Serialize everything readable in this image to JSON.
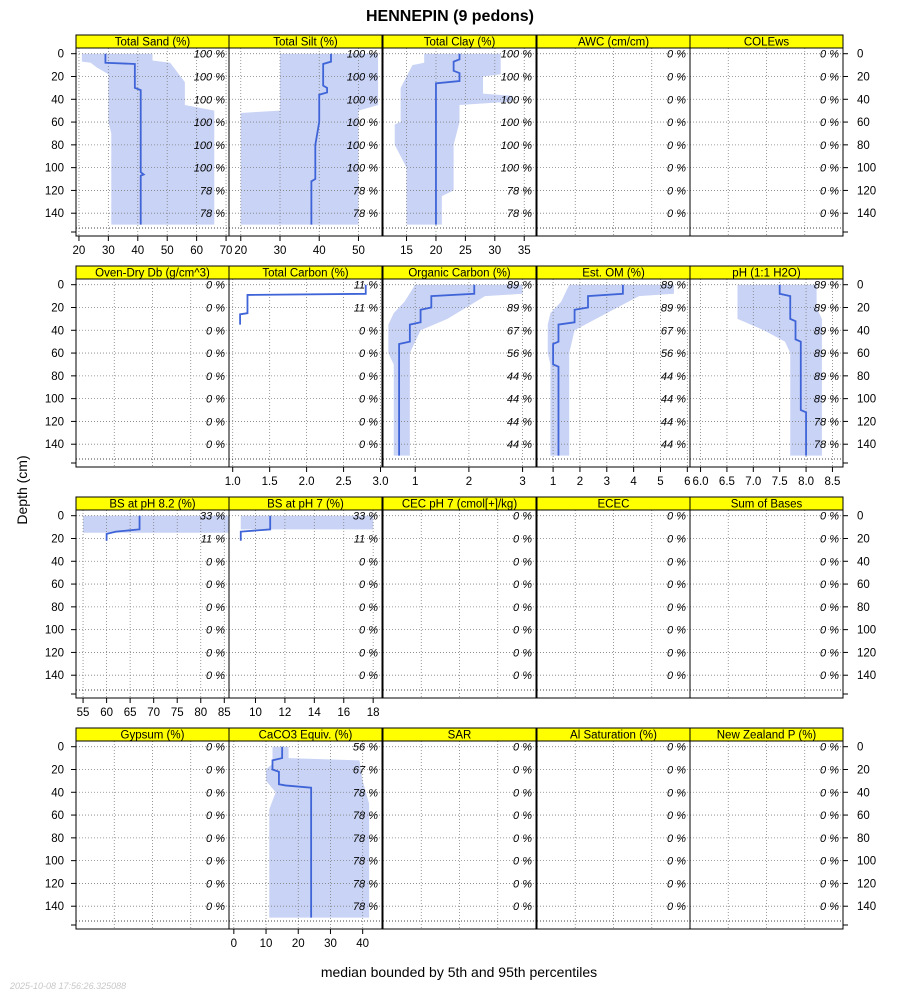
{
  "chart_data": {
    "type": "line",
    "title": "HENNEPIN (9 pedons)",
    "xlabel": "median bounded by 5th and 95th percentiles",
    "ylabel": "Depth (cm)",
    "footer": "2025-10-08 17:56:26.325088",
    "ylim": [
      160,
      -5
    ],
    "yticks": [
      0,
      20,
      40,
      60,
      80,
      100,
      120,
      140
    ],
    "grid": true,
    "colors": {
      "strip": "#ffff00",
      "median": "#3f64d8",
      "band": "#c9d3f5",
      "grid": "#808080"
    },
    "panels": [
      {
        "label": "Total Sand (%)",
        "xlim": [
          19,
          71
        ],
        "xticks": [
          20,
          30,
          40,
          50,
          60,
          70
        ],
        "pct_labels": [
          "100 %",
          "100 %",
          "100 %",
          "100 %",
          "100 %",
          "100 %",
          "78 %",
          "78 %"
        ],
        "median": [
          [
            29,
            0
          ],
          [
            29,
            8
          ],
          [
            39,
            9
          ],
          [
            39,
            30
          ],
          [
            41,
            32
          ],
          [
            41,
            104
          ],
          [
            42,
            106
          ],
          [
            41,
            107
          ],
          [
            41,
            150
          ]
        ],
        "lower": [
          [
            21,
            0
          ],
          [
            21,
            7
          ],
          [
            24,
            8
          ],
          [
            26,
            12
          ],
          [
            28,
            15
          ],
          [
            30,
            18
          ],
          [
            30,
            60
          ],
          [
            31,
            70
          ],
          [
            31,
            150
          ]
        ],
        "upper": [
          [
            45,
            0
          ],
          [
            45,
            6
          ],
          [
            51,
            8
          ],
          [
            56,
            25
          ],
          [
            56,
            45
          ],
          [
            66,
            50
          ],
          [
            66,
            150
          ]
        ]
      },
      {
        "label": "Total Silt (%)",
        "xlim": [
          17,
          56
        ],
        "xticks": [
          20,
          30,
          40,
          50
        ],
        "pct_labels": [
          "100 %",
          "100 %",
          "100 %",
          "100 %",
          "100 %",
          "100 %",
          "78 %",
          "78 %"
        ],
        "median": [
          [
            43,
            0
          ],
          [
            43,
            7
          ],
          [
            41,
            9
          ],
          [
            41,
            28
          ],
          [
            42,
            30
          ],
          [
            42,
            34
          ],
          [
            40,
            36
          ],
          [
            40,
            60
          ],
          [
            39,
            80
          ],
          [
            39,
            110
          ],
          [
            38,
            112
          ],
          [
            38,
            150
          ]
        ],
        "lower": [
          [
            30,
            0
          ],
          [
            30,
            50
          ],
          [
            20,
            52
          ],
          [
            20,
            150
          ]
        ],
        "upper": [
          [
            55,
            0
          ],
          [
            55,
            45
          ],
          [
            50,
            50
          ],
          [
            50,
            150
          ]
        ]
      },
      {
        "label": "Total Clay (%)",
        "xlim": [
          11,
          37
        ],
        "xticks": [
          15,
          20,
          25,
          30,
          35
        ],
        "pct_labels": [
          "100 %",
          "100 %",
          "100 %",
          "100 %",
          "100 %",
          "100 %",
          "78 %",
          "78 %"
        ],
        "median": [
          [
            24,
            0
          ],
          [
            24,
            5
          ],
          [
            23,
            7
          ],
          [
            23,
            15
          ],
          [
            24,
            17
          ],
          [
            24,
            24
          ],
          [
            20,
            26
          ],
          [
            20,
            150
          ]
        ],
        "lower": [
          [
            18,
            0
          ],
          [
            18,
            8
          ],
          [
            16,
            10
          ],
          [
            15,
            20
          ],
          [
            14,
            30
          ],
          [
            14,
            60
          ],
          [
            13,
            62
          ],
          [
            13,
            80
          ],
          [
            14,
            90
          ],
          [
            15,
            100
          ],
          [
            15,
            150
          ]
        ],
        "upper": [
          [
            31,
            0
          ],
          [
            31,
            18
          ],
          [
            28,
            20
          ],
          [
            28,
            35
          ],
          [
            33,
            37
          ],
          [
            33,
            42
          ],
          [
            24,
            45
          ],
          [
            24,
            60
          ],
          [
            23,
            80
          ],
          [
            23,
            120
          ],
          [
            21,
            125
          ],
          [
            21,
            150
          ]
        ]
      },
      {
        "label": "AWC (cm/cm)",
        "xlim": null,
        "xticks": [],
        "pct_labels": [
          "0 %",
          "0 %",
          "0 %",
          "0 %",
          "0 %",
          "0 %",
          "0 %",
          "0 %"
        ],
        "median": [],
        "lower": [],
        "upper": []
      },
      {
        "label": "COLEws",
        "xlim": null,
        "xticks": [],
        "pct_labels": [
          "0 %",
          "0 %",
          "0 %",
          "0 %",
          "0 %",
          "0 %",
          "0 %",
          "0 %"
        ],
        "median": [],
        "lower": [],
        "upper": []
      },
      {
        "label": "Oven-Dry Db (g/cm^3)",
        "xlim": null,
        "xticks": [],
        "pct_labels": [
          "0 %",
          "0 %",
          "0 %",
          "0 %",
          "0 %",
          "0 %",
          "0 %",
          "0 %"
        ],
        "median": [],
        "lower": [],
        "upper": []
      },
      {
        "label": "Total Carbon (%)",
        "xlim": [
          0.95,
          3.02
        ],
        "xticks": [
          1.0,
          1.5,
          2.0,
          2.5,
          3.0
        ],
        "pct_labels": [
          "11 %",
          "11 %",
          "0 %",
          "0 %",
          "0 %",
          "0 %",
          "0 %",
          "0 %"
        ],
        "median": [
          [
            2.8,
            0
          ],
          [
            2.8,
            8
          ],
          [
            1.2,
            9
          ],
          [
            1.2,
            25
          ],
          [
            1.1,
            26
          ],
          [
            1.1,
            35
          ]
        ],
        "lower": [],
        "upper": []
      },
      {
        "label": "Organic Carbon (%)",
        "xlim": [
          0.4,
          3.25
        ],
        "xticks": [
          1,
          2,
          3
        ],
        "pct_labels": [
          "89 %",
          "89 %",
          "67 %",
          "56 %",
          "44 %",
          "44 %",
          "44 %",
          "44 %"
        ],
        "median": [
          [
            2.1,
            0
          ],
          [
            2.1,
            8
          ],
          [
            1.3,
            10
          ],
          [
            1.3,
            20
          ],
          [
            1.1,
            22
          ],
          [
            1.1,
            33
          ],
          [
            0.9,
            35
          ],
          [
            0.9,
            50
          ],
          [
            0.7,
            52
          ],
          [
            0.7,
            150
          ]
        ],
        "lower": [
          [
            1.0,
            0
          ],
          [
            0.8,
            15
          ],
          [
            0.6,
            25
          ],
          [
            0.5,
            35
          ],
          [
            0.5,
            60
          ],
          [
            0.6,
            70
          ],
          [
            0.6,
            150
          ]
        ],
        "upper": [
          [
            3.0,
            0
          ],
          [
            3.0,
            8
          ],
          [
            2.3,
            10
          ],
          [
            1.6,
            30
          ],
          [
            1.1,
            40
          ],
          [
            0.9,
            60
          ],
          [
            0.9,
            150
          ]
        ]
      },
      {
        "label": "Est. OM (%)",
        "xlim": [
          0.4,
          6.1
        ],
        "xticks": [
          1,
          2,
          3,
          4,
          5,
          6
        ],
        "pct_labels": [
          "89 %",
          "89 %",
          "67 %",
          "56 %",
          "44 %",
          "44 %",
          "44 %",
          "44 %"
        ],
        "median": [
          [
            3.6,
            0
          ],
          [
            3.6,
            8
          ],
          [
            2.3,
            10
          ],
          [
            2.3,
            20
          ],
          [
            1.8,
            22
          ],
          [
            1.8,
            33
          ],
          [
            1.2,
            35
          ],
          [
            1.2,
            50
          ],
          [
            1.0,
            52
          ],
          [
            1.0,
            70
          ],
          [
            1.2,
            72
          ],
          [
            1.2,
            150
          ]
        ],
        "lower": [
          [
            1.6,
            0
          ],
          [
            1.3,
            15
          ],
          [
            0.9,
            25
          ],
          [
            0.8,
            35
          ],
          [
            0.8,
            60
          ],
          [
            0.9,
            70
          ],
          [
            0.9,
            150
          ]
        ],
        "upper": [
          [
            5.5,
            0
          ],
          [
            5.5,
            8
          ],
          [
            4.2,
            10
          ],
          [
            3.0,
            25
          ],
          [
            1.8,
            40
          ],
          [
            1.6,
            60
          ],
          [
            1.6,
            150
          ]
        ]
      },
      {
        "label": "pH (1:1 H2O)",
        "xlim": [
          5.8,
          8.7
        ],
        "xticks": [
          6.0,
          6.5,
          7.0,
          7.5,
          8.0,
          8.5
        ],
        "pct_labels": [
          "89 %",
          "89 %",
          "89 %",
          "89 %",
          "89 %",
          "89 %",
          "78 %",
          "78 %"
        ],
        "median": [
          [
            7.5,
            0
          ],
          [
            7.5,
            8
          ],
          [
            7.7,
            10
          ],
          [
            7.7,
            30
          ],
          [
            7.8,
            32
          ],
          [
            7.8,
            48
          ],
          [
            7.9,
            50
          ],
          [
            7.9,
            110
          ],
          [
            8.0,
            112
          ],
          [
            8.0,
            150
          ]
        ],
        "lower": [
          [
            6.7,
            0
          ],
          [
            6.7,
            30
          ],
          [
            7.2,
            40
          ],
          [
            7.6,
            50
          ],
          [
            7.7,
            60
          ],
          [
            7.7,
            150
          ]
        ],
        "upper": [
          [
            8.2,
            0
          ],
          [
            8.2,
            20
          ],
          [
            8.3,
            30
          ],
          [
            8.3,
            150
          ]
        ]
      },
      {
        "label": "BS at pH 8.2 (%)",
        "xlim": [
          53.5,
          86
        ],
        "xticks": [
          55,
          60,
          65,
          70,
          75,
          80,
          85
        ],
        "pct_labels": [
          "33 %",
          "11 %",
          "0 %",
          "0 %",
          "0 %",
          "0 %",
          "0 %",
          "0 %"
        ],
        "median": [
          [
            67,
            0
          ],
          [
            67,
            12
          ],
          [
            62,
            14
          ],
          [
            60,
            16
          ],
          [
            60,
            22
          ]
        ],
        "lower": [
          [
            55,
            0
          ],
          [
            55,
            15
          ]
        ],
        "upper": [
          [
            86,
            0
          ],
          [
            86,
            15
          ]
        ]
      },
      {
        "label": "BS at pH 7 (%)",
        "xlim": [
          8.2,
          18.6
        ],
        "xticks": [
          10,
          12,
          14,
          16,
          18
        ],
        "pct_labels": [
          "33 %",
          "11 %",
          "0 %",
          "0 %",
          "0 %",
          "0 %",
          "0 %",
          "0 %"
        ],
        "median": [
          [
            11,
            0
          ],
          [
            11,
            12
          ],
          [
            9,
            14
          ],
          [
            9,
            22
          ]
        ],
        "lower": [
          [
            9,
            0
          ],
          [
            9,
            12
          ]
        ],
        "upper": [
          [
            18,
            0
          ],
          [
            18,
            12
          ]
        ]
      },
      {
        "label": "CEC pH 7 (cmol[+]/kg)",
        "xlim": null,
        "xticks": [],
        "pct_labels": [
          "0 %",
          "0 %",
          "0 %",
          "0 %",
          "0 %",
          "0 %",
          "0 %",
          "0 %"
        ],
        "median": [],
        "lower": [],
        "upper": []
      },
      {
        "label": "ECEC",
        "xlim": null,
        "xticks": [],
        "pct_labels": [
          "0 %",
          "0 %",
          "0 %",
          "0 %",
          "0 %",
          "0 %",
          "0 %",
          "0 %"
        ],
        "median": [],
        "lower": [],
        "upper": []
      },
      {
        "label": "Sum of Bases",
        "xlim": null,
        "xticks": [],
        "pct_labels": [
          "0 %",
          "0 %",
          "0 %",
          "0 %",
          "0 %",
          "0 %",
          "0 %",
          "0 %"
        ],
        "median": [],
        "lower": [],
        "upper": []
      },
      {
        "label": "Gypsum (%)",
        "xlim": null,
        "xticks": [],
        "pct_labels": [
          "0 %",
          "0 %",
          "0 %",
          "0 %",
          "0 %",
          "0 %",
          "0 %",
          "0 %"
        ],
        "median": [],
        "lower": [],
        "upper": []
      },
      {
        "label": "CaCO3 Equiv. (%)",
        "xlim": [
          -1.5,
          46
        ],
        "xticks": [
          0,
          10,
          20,
          30,
          40
        ],
        "pct_labels": [
          "56 %",
          "67 %",
          "78 %",
          "78 %",
          "78 %",
          "78 %",
          "78 %",
          "78 %"
        ],
        "median": [
          [
            15,
            0
          ],
          [
            15,
            10
          ],
          [
            12,
            12
          ],
          [
            12,
            20
          ],
          [
            14,
            22
          ],
          [
            14,
            33
          ],
          [
            16,
            34
          ],
          [
            24,
            36
          ],
          [
            24,
            150
          ]
        ],
        "lower": [
          [
            12,
            0
          ],
          [
            12,
            15
          ],
          [
            10,
            20
          ],
          [
            10,
            30
          ],
          [
            13,
            40
          ],
          [
            11,
            55
          ],
          [
            11,
            150
          ]
        ],
        "upper": [
          [
            17,
            0
          ],
          [
            17,
            10
          ],
          [
            39,
            12
          ],
          [
            40,
            30
          ],
          [
            42,
            50
          ],
          [
            42,
            150
          ]
        ]
      },
      {
        "label": "SAR",
        "xlim": null,
        "xticks": [],
        "pct_labels": [
          "0 %",
          "0 %",
          "0 %",
          "0 %",
          "0 %",
          "0 %",
          "0 %",
          "0 %"
        ],
        "median": [],
        "lower": [],
        "upper": []
      },
      {
        "label": "Al Saturation (%)",
        "xlim": null,
        "xticks": [],
        "pct_labels": [
          "0 %",
          "0 %",
          "0 %",
          "0 %",
          "0 %",
          "0 %",
          "0 %",
          "0 %"
        ],
        "median": [],
        "lower": [],
        "upper": []
      },
      {
        "label": "New Zealand P (%)",
        "xlim": null,
        "xticks": [],
        "pct_labels": [
          "0 %",
          "0 %",
          "0 %",
          "0 %",
          "0 %",
          "0 %",
          "0 %",
          "0 %"
        ],
        "median": [],
        "lower": [],
        "upper": []
      }
    ]
  }
}
